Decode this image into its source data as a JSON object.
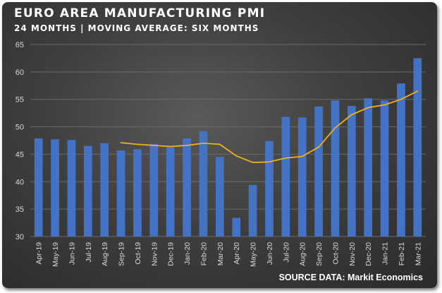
{
  "header": {
    "title": "EURO AREA MANUFACTURING PMI",
    "subtitle": "24 MONTHS | MOVING AVERAGE: SIX MONTHS"
  },
  "footer": {
    "source": "SOURCE DATA: Markit Economics"
  },
  "colors": {
    "bar": "#4472c4",
    "moving_average": "#f2b01e",
    "gridline": "#6a6a6a",
    "text": "#ffffff"
  },
  "chart_data": {
    "type": "bar",
    "title": "EURO AREA MANUFACTURING PMI",
    "subtitle": "24 MONTHS | MOVING AVERAGE: SIX MONTHS",
    "xlabel": "",
    "ylabel": "",
    "ylim": [
      30,
      65
    ],
    "yticks": [
      30,
      35,
      40,
      45,
      50,
      55,
      60,
      65
    ],
    "grid": true,
    "categories": [
      "Apr-19",
      "May-19",
      "Jun-19",
      "Jul-19",
      "Aug-19",
      "Sep-19",
      "Oct-19",
      "Nov-19",
      "Dec-19",
      "Jan-20",
      "Feb-20",
      "Mar-20",
      "Apr-20",
      "May-20",
      "Jun-20",
      "Jul-20",
      "Aug-20",
      "Sep-20",
      "Oct-20",
      "Nov-20",
      "Dec-20",
      "Jan-21",
      "Feb-21",
      "Mar-21"
    ],
    "series": [
      {
        "type": "bar",
        "values": [
          47.9,
          47.7,
          47.6,
          46.5,
          47.0,
          45.7,
          45.9,
          46.9,
          46.3,
          47.9,
          49.2,
          44.5,
          33.4,
          39.4,
          47.4,
          51.8,
          51.7,
          53.7,
          54.8,
          53.8,
          55.2,
          54.8,
          57.9,
          62.5
        ]
      },
      {
        "type": "line",
        "values": [
          null,
          null,
          null,
          null,
          null,
          47.1,
          46.8,
          46.6,
          46.4,
          46.6,
          47.0,
          46.8,
          44.7,
          43.5,
          43.6,
          44.3,
          44.6,
          46.3,
          49.8,
          52.2,
          53.5,
          54.0,
          55.0,
          56.5
        ]
      }
    ]
  }
}
